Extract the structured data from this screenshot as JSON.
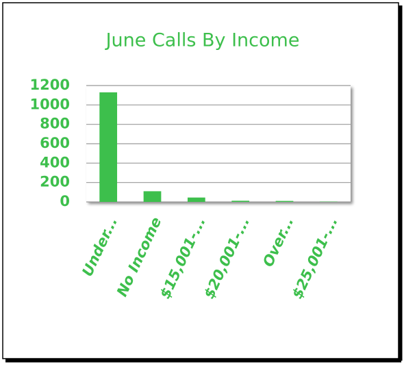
{
  "chart_data": {
    "type": "bar",
    "title": "June Calls By Income",
    "categories": [
      "Under...",
      "No Income",
      "$15,001-...",
      "$20,001-...",
      "Over...",
      "$25,001-..."
    ],
    "values": [
      1130,
      110,
      45,
      12,
      10,
      3
    ],
    "color": "#3dbf4c",
    "ylim": [
      0,
      1200
    ],
    "yticks": [
      0,
      200,
      400,
      600,
      800,
      1000,
      1200
    ],
    "grid": true
  }
}
